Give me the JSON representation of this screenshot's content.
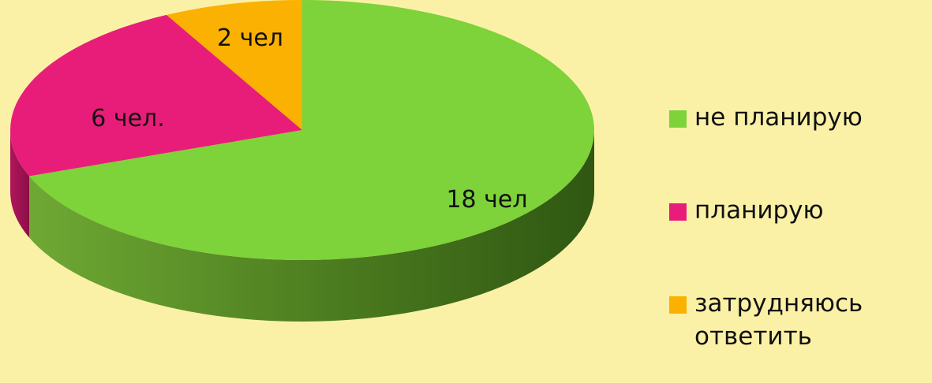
{
  "chart_data": {
    "type": "pie",
    "title": "",
    "categories": [
      "не планирую",
      "планирую",
      "затрудняюсь ответить"
    ],
    "values": [
      18,
      6,
      2
    ],
    "data_labels": [
      "18 чел",
      "6 чел.",
      "2 чел"
    ],
    "colors": [
      "#7ed23a",
      "#e81d79",
      "#fbb101"
    ],
    "style": "3d",
    "legend_position": "right"
  }
}
